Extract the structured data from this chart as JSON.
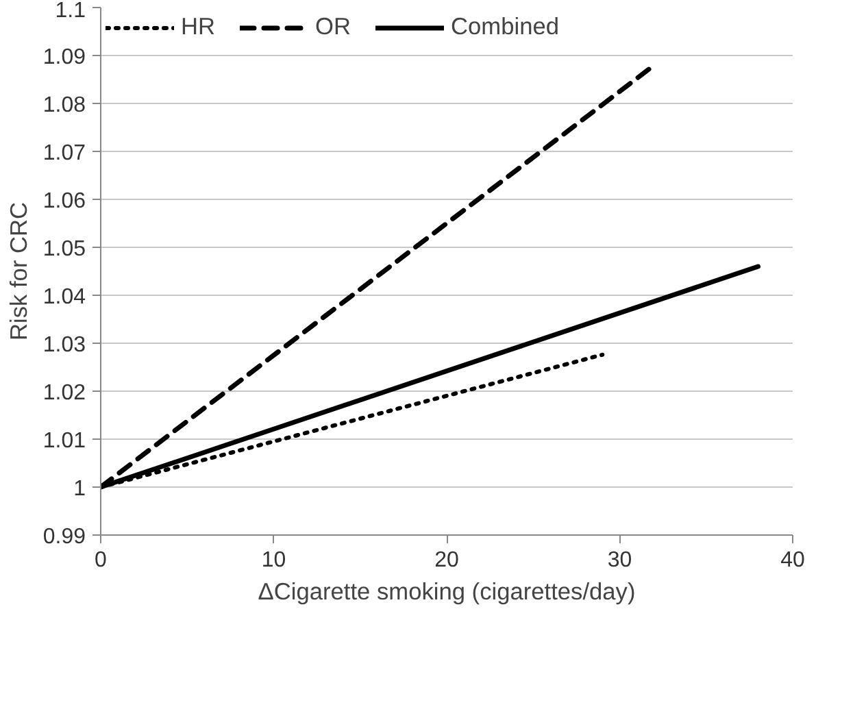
{
  "chart_data": {
    "type": "line",
    "xlabel": "ΔCigarette smoking (cigarettes/day)",
    "ylabel": "Risk for CRC",
    "series": [
      {
        "name": "HR",
        "color": "#000000",
        "line_style": "dotted",
        "x": [
          0,
          29
        ],
        "values": [
          1.0,
          1.0276
        ]
      },
      {
        "name": "OR",
        "color": "#000000",
        "line_style": "dashed",
        "x": [
          0,
          32
        ],
        "values": [
          1.0,
          1.088
        ]
      },
      {
        "name": "Combined",
        "color": "#000000",
        "line_style": "solid",
        "x": [
          0,
          38
        ],
        "values": [
          1.0,
          1.046
        ]
      }
    ],
    "xlim": [
      0,
      40
    ],
    "xticks": [
      0,
      10,
      20,
      30,
      40
    ],
    "ylim": [
      0.99,
      1.1
    ],
    "yticks": [
      0.99,
      1,
      1.01,
      1.02,
      1.03,
      1.04,
      1.05,
      1.06,
      1.07,
      1.08,
      1.09,
      1.1
    ],
    "grid": "y",
    "legend": "top left",
    "marker": "none"
  }
}
